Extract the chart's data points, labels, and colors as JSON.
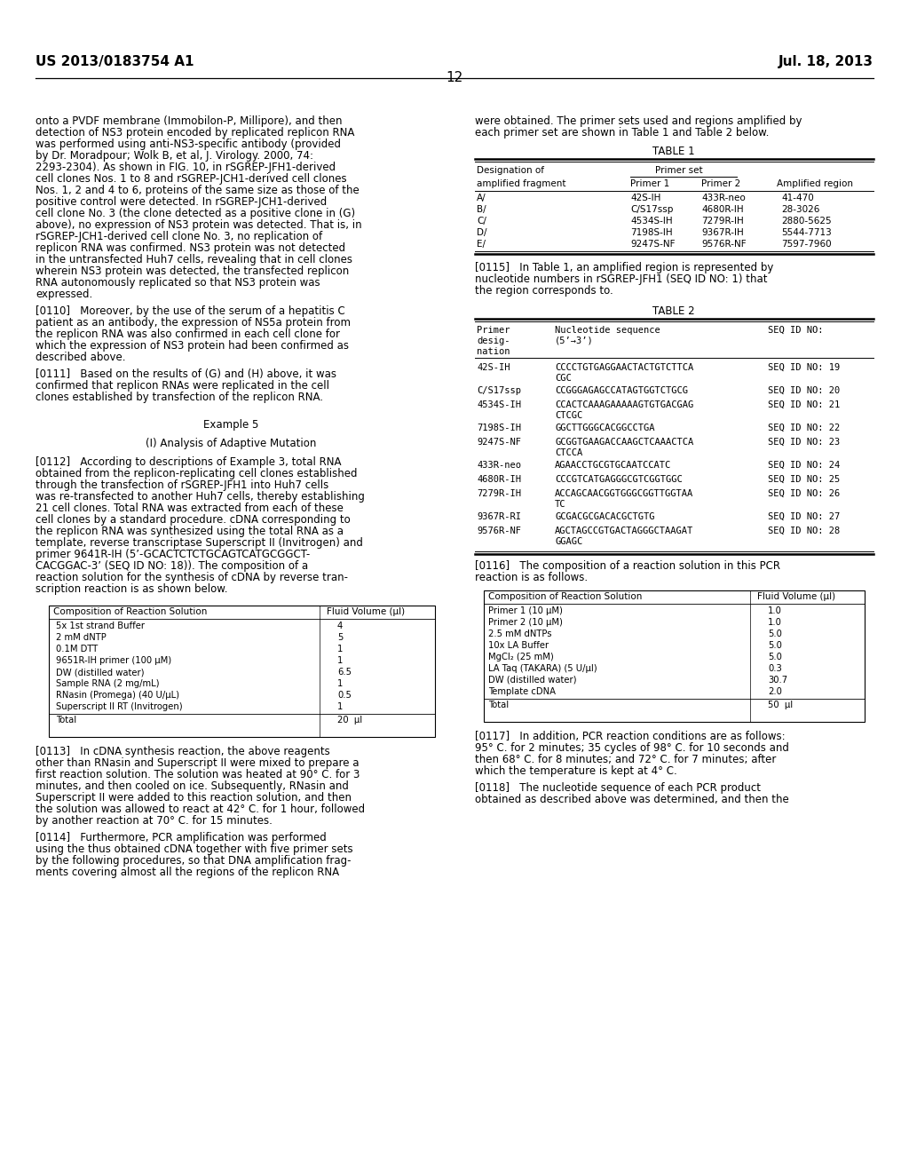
{
  "header_left": "US 2013/0183754 A1",
  "header_right": "Jul. 18, 2013",
  "page_number": "12",
  "bg": "#ffffff",
  "fg": "#000000"
}
